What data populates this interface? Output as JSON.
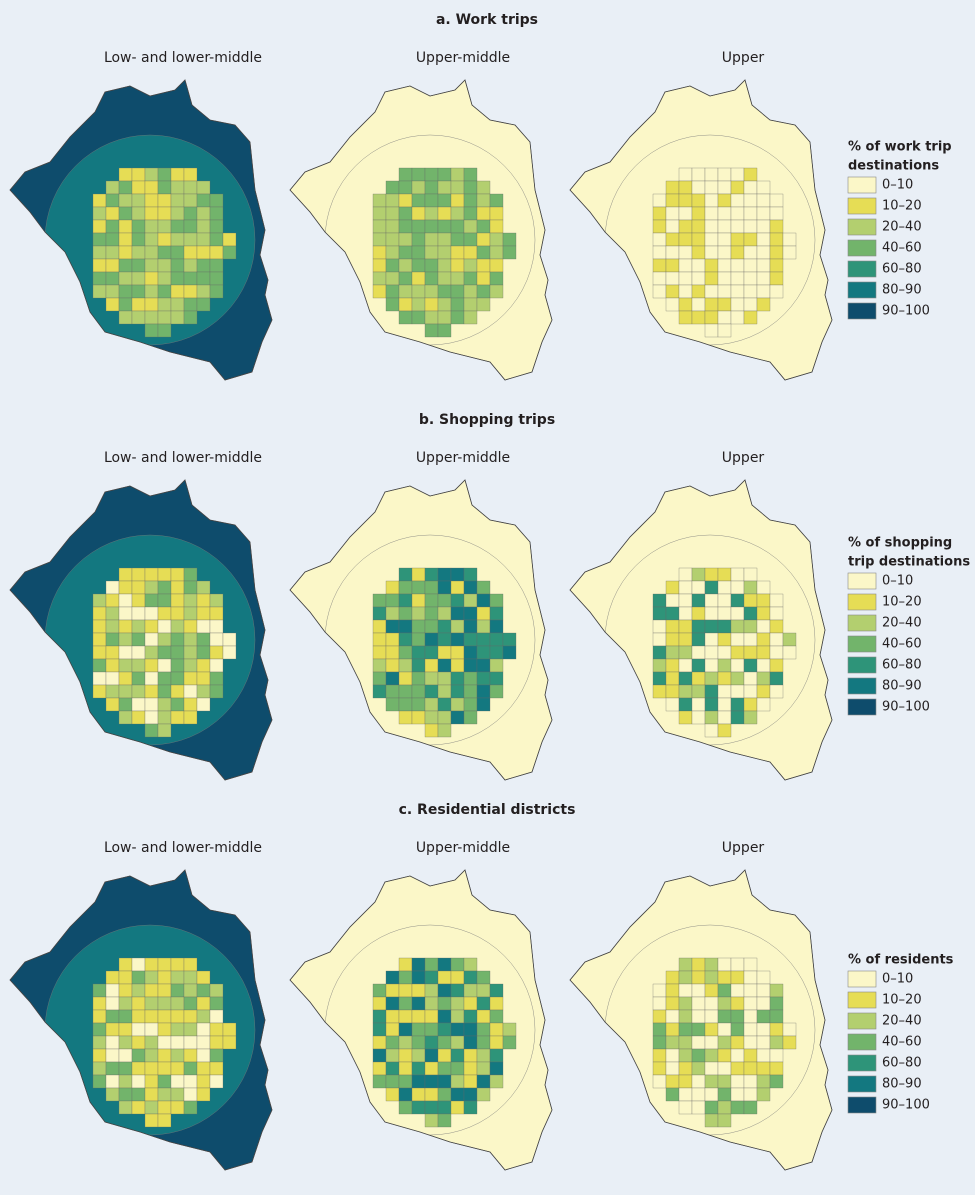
{
  "panels": [
    {
      "title": "a.  Work trips",
      "columns": [
        "Low- and lower-middle",
        "Upper-middle",
        "Upper"
      ],
      "legend_title": [
        "% of work trip",
        "destinations"
      ]
    },
    {
      "title": "b. Shopping trips",
      "columns": [
        "Low- and lower-middle",
        "Upper-middle",
        "Upper"
      ],
      "legend_title": [
        "% of shopping",
        "trip destinations"
      ]
    },
    {
      "title": "c. Residential districts",
      "columns": [
        "Low- and lower-middle",
        "Upper-middle",
        "Upper"
      ],
      "legend_title": [
        "% of residents"
      ]
    }
  ],
  "legend_items": [
    {
      "label": "0–10",
      "color": "#fbf7c8"
    },
    {
      "label": "10–20",
      "color": "#e6dd55"
    },
    {
      "label": "20–40",
      "color": "#b3cf6f"
    },
    {
      "label": "40–60",
      "color": "#72b46b"
    },
    {
      "label": "60–80",
      "color": "#2e9479"
    },
    {
      "label": "80–90",
      "color": "#137880"
    },
    {
      "label": "90–100",
      "color": "#0e4c6c"
    }
  ]
}
